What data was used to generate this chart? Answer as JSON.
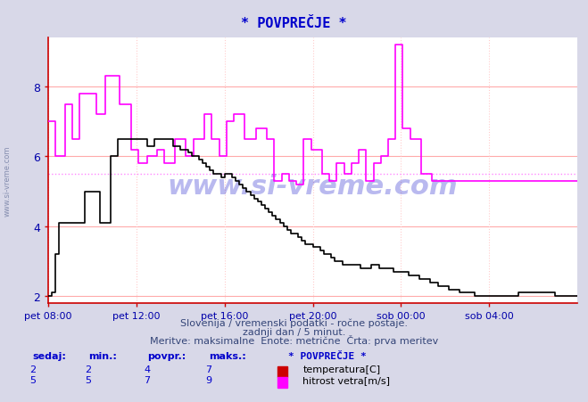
{
  "title": "* POVPREČJE *",
  "bg_color": "#d8d8e8",
  "plot_bg_color": "#ffffff",
  "grid_color_h": "#ffaaaa",
  "grid_color_v": "#ffcccc",
  "xlabel_ticks": [
    "pet 08:00",
    "pet 12:00",
    "pet 16:00",
    "pet 20:00",
    "sob 00:00",
    "sob 04:00"
  ],
  "ylim": [
    1.8,
    9.4
  ],
  "xlim": [
    0,
    288
  ],
  "yticks": [
    2,
    4,
    6,
    8
  ],
  "subtitle1": "Slovenija / vremenski podatki - ročne postaje.",
  "subtitle2": "zadnji dan / 5 minut.",
  "subtitle3": "Meritve: maksimalne  Enote: metrične  Črta: prva meritev",
  "legend_title": "* POVPREČJE *",
  "legend_items": [
    {
      "label": "temperatura[C]",
      "color": "#cc0000"
    },
    {
      "label": "hitrost vetra[m/s]",
      "color": "#ff00ff"
    }
  ],
  "table_headers": [
    "sedaj:",
    "min.:",
    "povpr.:",
    "maks.:"
  ],
  "table_row1": [
    "2",
    "2",
    "4",
    "7"
  ],
  "table_row2": [
    "5",
    "5",
    "7",
    "9"
  ],
  "avg_temp": 4.0,
  "avg_wind": 5.5,
  "temp_color": "#000000",
  "wind_color": "#ff00ff",
  "avg_line_color": "#ff88ff",
  "axis_color": "#cc0000",
  "tick_color": "#0000aa",
  "title_color": "#0000cc",
  "temp_x": [
    0,
    1,
    2,
    3,
    4,
    5,
    6,
    8,
    10,
    12,
    14,
    16,
    18,
    20,
    22,
    24,
    26,
    28,
    30,
    32,
    34,
    36,
    38,
    40,
    42,
    44,
    46,
    48,
    50,
    52,
    54,
    56,
    58,
    60,
    62,
    64,
    66,
    68,
    70,
    72,
    74,
    76,
    78,
    80,
    82,
    84,
    86,
    88,
    90,
    92,
    94,
    96,
    98,
    100,
    102,
    104,
    106,
    108,
    110,
    112,
    114,
    116,
    118,
    120,
    122,
    124,
    126,
    128,
    130,
    132,
    134,
    136,
    138,
    140,
    142,
    144,
    146,
    148,
    150,
    152,
    154,
    156,
    158,
    160,
    162,
    164,
    166,
    168,
    170,
    172,
    174,
    176,
    178,
    180,
    182,
    184,
    186,
    188,
    190,
    192,
    194,
    196,
    198,
    200,
    202,
    204,
    206,
    208,
    210,
    212,
    214,
    216,
    218,
    220,
    222,
    224,
    226,
    228,
    230,
    232,
    234,
    236,
    238,
    240,
    242,
    244,
    246,
    248,
    250,
    252,
    254,
    256,
    258,
    260,
    262,
    264,
    266,
    268,
    270,
    272,
    274,
    276,
    278,
    280,
    282,
    284,
    286,
    288
  ],
  "temp_y": [
    2,
    2,
    2.1,
    2.1,
    3.2,
    3.2,
    4.1,
    4.1,
    4.1,
    4.1,
    4.1,
    4.1,
    4.1,
    5.0,
    5.0,
    5.0,
    5.0,
    4.1,
    4.1,
    4.1,
    6.0,
    6.0,
    6.5,
    6.5,
    6.5,
    6.5,
    6.5,
    6.5,
    6.5,
    6.5,
    6.3,
    6.3,
    6.5,
    6.5,
    6.5,
    6.5,
    6.5,
    6.3,
    6.3,
    6.2,
    6.2,
    6.1,
    6.0,
    6.0,
    5.9,
    5.8,
    5.7,
    5.6,
    5.5,
    5.5,
    5.4,
    5.5,
    5.5,
    5.4,
    5.3,
    5.2,
    5.1,
    5.0,
    4.9,
    4.8,
    4.7,
    4.6,
    4.5,
    4.4,
    4.3,
    4.2,
    4.1,
    4.0,
    3.9,
    3.8,
    3.8,
    3.7,
    3.6,
    3.5,
    3.5,
    3.4,
    3.4,
    3.3,
    3.2,
    3.2,
    3.1,
    3.0,
    3.0,
    2.9,
    2.9,
    2.9,
    2.9,
    2.9,
    2.8,
    2.8,
    2.8,
    2.9,
    2.9,
    2.8,
    2.8,
    2.8,
    2.8,
    2.7,
    2.7,
    2.7,
    2.7,
    2.6,
    2.6,
    2.6,
    2.5,
    2.5,
    2.5,
    2.4,
    2.4,
    2.3,
    2.3,
    2.3,
    2.2,
    2.2,
    2.2,
    2.1,
    2.1,
    2.1,
    2.1,
    2.0,
    2.0,
    2.0,
    2.0,
    2.0,
    2.0,
    2.0,
    2.0,
    2.0,
    2.0,
    2.0,
    2.0,
    2.1,
    2.1,
    2.1,
    2.1,
    2.1,
    2.1,
    2.1,
    2.1,
    2.1,
    2.1,
    2.0,
    2.0,
    2.0,
    2.0,
    2.0,
    2.0,
    2.0
  ],
  "wind_x": [
    0,
    3,
    4,
    8,
    9,
    12,
    13,
    16,
    17,
    20,
    21,
    25,
    26,
    30,
    31,
    38,
    39,
    44,
    45,
    48,
    49,
    53,
    54,
    58,
    59,
    62,
    63,
    68,
    69,
    74,
    75,
    78,
    79,
    84,
    85,
    88,
    89,
    92,
    93,
    96,
    97,
    100,
    101,
    106,
    107,
    112,
    113,
    118,
    119,
    122,
    123,
    126,
    127,
    130,
    131,
    134,
    135,
    138,
    139,
    142,
    143,
    148,
    149,
    152,
    153,
    156,
    157,
    160,
    161,
    164,
    165,
    168,
    169,
    172,
    173,
    176,
    177,
    180,
    181,
    184,
    185,
    188,
    189,
    192,
    193,
    196,
    197,
    202,
    203,
    208,
    209,
    214,
    215,
    220,
    221,
    226,
    227,
    232,
    233,
    238,
    239,
    244,
    245,
    250,
    251,
    256,
    257,
    262,
    263,
    264,
    265,
    266,
    267,
    268,
    269,
    272,
    273,
    276,
    277,
    280,
    281,
    284,
    285,
    288
  ],
  "wind_y": [
    7,
    7,
    6,
    6,
    7.5,
    7.5,
    6.5,
    6.5,
    7.8,
    7.8,
    7.8,
    7.8,
    7.2,
    7.2,
    8.3,
    8.3,
    7.5,
    7.5,
    6.2,
    6.2,
    5.8,
    5.8,
    6.0,
    6.0,
    6.2,
    6.2,
    5.8,
    5.8,
    6.5,
    6.5,
    6.0,
    6.0,
    6.5,
    6.5,
    7.2,
    7.2,
    6.5,
    6.5,
    6.0,
    6.0,
    7.0,
    7.0,
    7.2,
    7.2,
    6.5,
    6.5,
    6.8,
    6.8,
    6.5,
    6.5,
    5.3,
    5.3,
    5.5,
    5.5,
    5.3,
    5.3,
    5.2,
    5.2,
    6.5,
    6.5,
    6.2,
    6.2,
    5.5,
    5.5,
    5.3,
    5.3,
    5.8,
    5.8,
    5.5,
    5.5,
    5.8,
    5.8,
    6.2,
    6.2,
    5.3,
    5.3,
    5.8,
    5.8,
    6.0,
    6.0,
    6.5,
    6.5,
    9.2,
    9.2,
    6.8,
    6.8,
    6.5,
    6.5,
    5.5,
    5.5,
    5.3,
    5.3,
    5.3,
    5.3,
    5.3,
    5.3,
    5.3,
    5.3,
    5.3,
    5.3,
    5.3,
    5.3,
    5.3,
    5.3,
    5.3,
    5.3,
    5.3,
    5.3,
    5.3,
    5.3,
    5.3,
    5.3,
    5.3,
    5.3,
    5.3,
    5.3,
    5.3,
    5.3,
    5.3,
    5.3,
    5.3,
    5.3,
    5.3,
    5.3
  ]
}
